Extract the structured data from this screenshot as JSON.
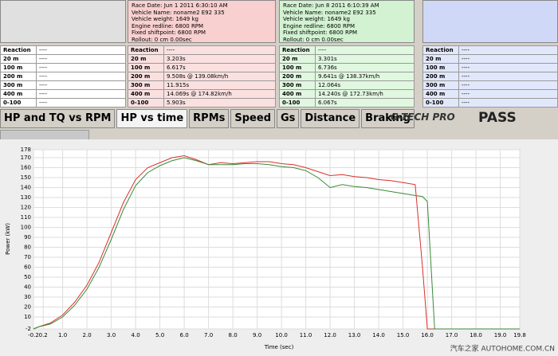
{
  "info_panels": [
    {
      "lines": [
        "Race Date: Jun 1 2011  6:30:10 AM",
        "Vehicle Name: noname2 E92 335",
        "Vehicle weight: 1649 kg",
        "Engine redline: 6800 RPM",
        "Fixed shiftpoint: 6800 RPM",
        "Rollout: 0 cm  0.00sec"
      ]
    },
    {
      "lines": [
        "Race Date: Jun 8 2011  6:10:39 AM",
        "Vehicle Name: noname2 E92 335",
        "Vehicle weight: 1649 kg",
        "Engine redline: 6800 RPM",
        "Fixed shiftpoint: 6800 RPM",
        "Rollout: 0 cm  0.00sec"
      ]
    }
  ],
  "tables": [
    {
      "rows": [
        [
          "Reaction",
          "----"
        ],
        [
          "20 m",
          "----"
        ],
        [
          "100 m",
          "----"
        ],
        [
          "200 m",
          "----"
        ],
        [
          "300 m",
          "----"
        ],
        [
          "400 m",
          "----"
        ],
        [
          "0-100",
          "----"
        ]
      ]
    },
    {
      "rows": [
        [
          "Reaction",
          "----"
        ],
        [
          "20 m",
          "3.203s"
        ],
        [
          "100 m",
          "6.617s"
        ],
        [
          "200 m",
          "9.508s @ 139.08km/h"
        ],
        [
          "300 m",
          "11.915s"
        ],
        [
          "400 m",
          "14.069s @ 174.82km/h"
        ],
        [
          "0-100",
          "5.903s"
        ]
      ]
    },
    {
      "rows": [
        [
          "Reaction",
          "----"
        ],
        [
          "20 m",
          "3.301s"
        ],
        [
          "100 m",
          "6.736s"
        ],
        [
          "200 m",
          "9.641s @ 138.37km/h"
        ],
        [
          "300 m",
          "12.064s"
        ],
        [
          "400 m",
          "14.240s @ 172.73km/h"
        ],
        [
          "0-100",
          "6.067s"
        ]
      ]
    },
    {
      "rows": [
        [
          "Reaction",
          "----"
        ],
        [
          "20 m",
          "----"
        ],
        [
          "100 m",
          "----"
        ],
        [
          "200 m",
          "----"
        ],
        [
          "300 m",
          "----"
        ],
        [
          "400 m",
          "----"
        ],
        [
          "0-100",
          "----"
        ]
      ]
    }
  ],
  "tabs": [
    "HP and TQ vs RPM",
    "HP vs time",
    "RPMs",
    "Speed",
    "Gs",
    "Distance",
    "Braking"
  ],
  "logo": "G-TECH PRO",
  "pass": "PASS",
  "watermark": "汽车之家 AUTOHOME.COM.CN",
  "chart_data": {
    "type": "line",
    "x_label": "Time (sec)",
    "y_label": "Power (kW)",
    "x": [
      -0.2,
      0,
      0.5,
      1,
      1.5,
      2,
      2.5,
      3,
      3.5,
      4,
      4.5,
      5,
      5.5,
      6,
      6.5,
      7,
      7.5,
      8,
      8.5,
      9,
      9.5,
      10,
      10.5,
      11,
      11.5,
      12,
      12.5,
      13,
      13.5,
      14,
      14.5,
      15,
      15.5,
      15.8,
      16,
      16.3,
      17,
      18,
      19,
      19.8
    ],
    "series": [
      {
        "color": "#d8312c",
        "values": [
          -2,
          0,
          4,
          12,
          25,
          42,
          65,
          95,
          125,
          148,
          160,
          165,
          170,
          172,
          168,
          163,
          165,
          164,
          165,
          166,
          166,
          164,
          163,
          160,
          156,
          152,
          153,
          151,
          150,
          148,
          147,
          145,
          143,
          60,
          -2,
          -2,
          -2,
          -2,
          -2,
          -2
        ]
      },
      {
        "color": "#3a8a3a",
        "values": [
          -2,
          0,
          3,
          10,
          22,
          38,
          60,
          88,
          118,
          142,
          155,
          162,
          167,
          170,
          167,
          163,
          163,
          163,
          164,
          164,
          163,
          161,
          160,
          157,
          150,
          140,
          143,
          141,
          140,
          138,
          136,
          134,
          132,
          131,
          126,
          -2,
          -2,
          -2,
          -2,
          -2
        ]
      }
    ],
    "xlim": [
      -0.2,
      19.8
    ],
    "ylim": [
      -2,
      178
    ],
    "xticks": [
      -0.2,
      0.2,
      {
        "value": 1,
        "label": "1.0"
      },
      {
        "value": 2,
        "label": "2.0"
      },
      {
        "value": 3,
        "label": "3.0"
      },
      {
        "value": 4,
        "label": "4.0"
      },
      {
        "value": 5,
        "label": "5.0"
      },
      {
        "value": 6,
        "label": "6.0"
      },
      {
        "value": 7,
        "label": "7.0"
      },
      {
        "value": 8,
        "label": "8.0"
      },
      {
        "value": 9,
        "label": "9.0"
      },
      {
        "value": 10,
        "label": "10.0"
      },
      {
        "value": 11,
        "label": "11.0"
      },
      {
        "value": 12,
        "label": "12.0"
      },
      {
        "value": 13,
        "label": "13.0"
      },
      {
        "value": 14,
        "label": "14.0"
      },
      {
        "value": 15,
        "label": "15.0"
      },
      {
        "value": 16,
        "label": "16.0"
      },
      {
        "value": 17,
        "label": "17.0"
      },
      {
        "value": 18,
        "label": "18.0"
      },
      {
        "value": 19,
        "label": "19.0"
      },
      19.8
    ],
    "yticks": [
      -2,
      10,
      20,
      30,
      40,
      50,
      60,
      70,
      80,
      90,
      100,
      110,
      120,
      130,
      140,
      150,
      160,
      170,
      178
    ],
    "grid": true
  }
}
